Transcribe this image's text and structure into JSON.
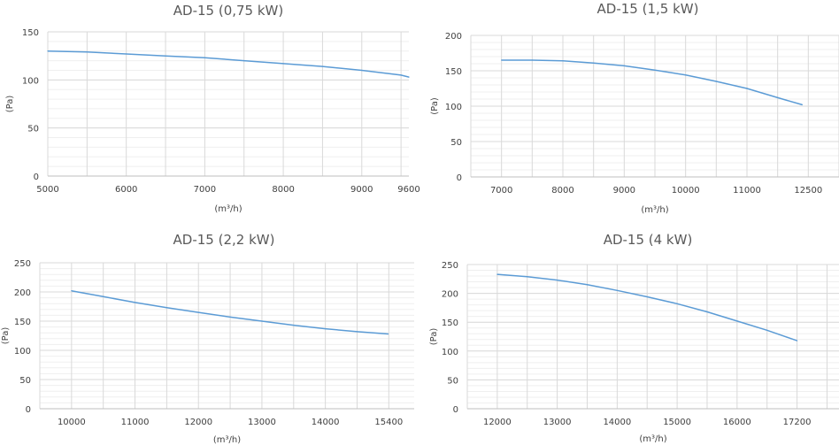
{
  "chart_data": [
    {
      "type": "line",
      "title": "AD-15 (0,75 kW)",
      "xlabel": "(m³/h)",
      "ylabel": "(Pa)",
      "xlim": [
        5000,
        9600
      ],
      "ylim": [
        0,
        150
      ],
      "x_ticks": [
        5000,
        6000,
        7000,
        8000,
        9000,
        9600
      ],
      "y_ticks": [
        0,
        50,
        100,
        150
      ],
      "grid": true,
      "line_color": "#5b9bd5",
      "series": [
        {
          "x": [
            5000,
            5500,
            6000,
            6500,
            7000,
            7500,
            8000,
            8500,
            9000,
            9500,
            9600
          ],
          "y": [
            130,
            129,
            127,
            125,
            123,
            120,
            117,
            114,
            110,
            105,
            103
          ]
        }
      ]
    },
    {
      "type": "line",
      "title": "AD-15 (1,5 kW)",
      "xlabel": "(m³/h)",
      "ylabel": "(Pa)",
      "xlim": [
        6500,
        12500
      ],
      "ylim": [
        0,
        200
      ],
      "x_ticks": [
        7000,
        8000,
        9000,
        10000,
        11000,
        12500
      ],
      "x_tick_positions": [
        7000,
        8000,
        9000,
        10000,
        11000,
        12000
      ],
      "y_ticks": [
        0,
        50,
        100,
        150,
        200
      ],
      "grid": true,
      "line_color": "#5b9bd5",
      "series": [
        {
          "x": [
            7000,
            7500,
            8000,
            8500,
            9000,
            9500,
            10000,
            10500,
            11000,
            11500,
            11900
          ],
          "y": [
            165,
            165,
            164,
            161,
            157,
            151,
            144,
            135,
            125,
            112,
            102
          ]
        }
      ]
    },
    {
      "type": "line",
      "title": "AD-15 (2,2 kW)",
      "xlabel": "(m³/h)",
      "ylabel": "(Pa)",
      "xlim": [
        9500,
        15400
      ],
      "ylim": [
        0,
        250
      ],
      "x_ticks": [
        10000,
        11000,
        12000,
        13000,
        14000,
        15400
      ],
      "x_tick_positions": [
        10000,
        11000,
        12000,
        13000,
        14000,
        15000
      ],
      "y_ticks": [
        0,
        50,
        100,
        150,
        200,
        250
      ],
      "grid": true,
      "line_color": "#5b9bd5",
      "series": [
        {
          "x": [
            10000,
            10500,
            11000,
            11500,
            12000,
            12500,
            13000,
            13500,
            14000,
            14500,
            14990
          ],
          "y": [
            202,
            192,
            182,
            173,
            165,
            157,
            150,
            143,
            137,
            132,
            128
          ]
        }
      ]
    },
    {
      "type": "line",
      "title": "AD-15 (4 kW)",
      "xlabel": "(m³/h)",
      "ylabel": "(Pa)",
      "xlim": [
        11500,
        17700
      ],
      "ylim": [
        0,
        250
      ],
      "x_ticks": [
        12000,
        13000,
        14000,
        15000,
        16000,
        17200
      ],
      "x_tick_positions": [
        12000,
        13000,
        14000,
        15000,
        16000,
        17000
      ],
      "y_ticks": [
        0,
        50,
        100,
        150,
        200,
        250
      ],
      "grid": true,
      "line_color": "#5b9bd5",
      "series": [
        {
          "x": [
            12000,
            12500,
            13000,
            13500,
            14000,
            14500,
            15000,
            15500,
            16000,
            16500,
            17000
          ],
          "y": [
            233,
            229,
            223,
            215,
            205,
            194,
            182,
            168,
            152,
            136,
            118
          ]
        }
      ]
    }
  ]
}
